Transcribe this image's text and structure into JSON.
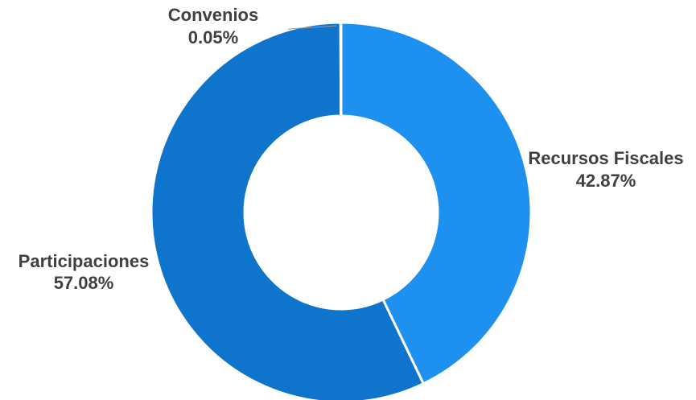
{
  "chart_data": {
    "type": "pie",
    "variant": "donut",
    "title": "",
    "slices": [
      {
        "name": "Recursos Fiscales",
        "value": 42.87,
        "value_label": "42.87%",
        "color": "#1e90f0"
      },
      {
        "name": "Participaciones",
        "value": 57.08,
        "value_label": "57.08%",
        "color": "#0f74cc"
      },
      {
        "name": "Convenios",
        "value": 0.05,
        "value_label": "0.05%",
        "color": "#0a66b8"
      }
    ],
    "legend": "none",
    "labels_outside": true
  }
}
